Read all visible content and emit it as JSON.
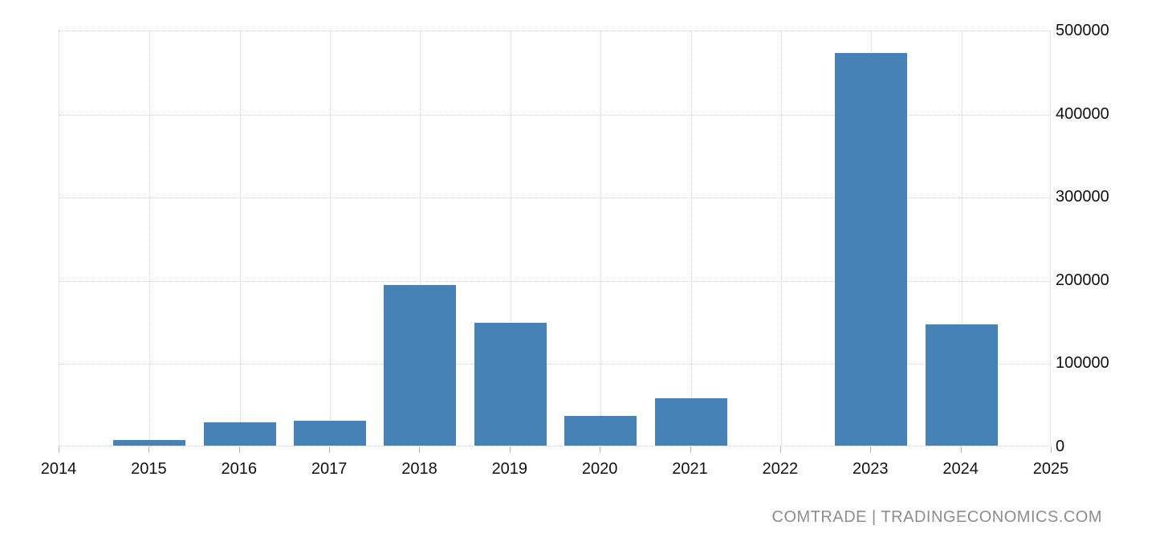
{
  "watermark": {
    "text": "COMTRADE | TRADINGECONOMICS.COM"
  },
  "chart_data": {
    "type": "bar",
    "title": "",
    "xlabel": "",
    "ylabel": "",
    "categories": [
      2015,
      2016,
      2017,
      2018,
      2019,
      2020,
      2021,
      2022,
      2023,
      2024
    ],
    "values": [
      7000,
      28000,
      30000,
      193000,
      148000,
      36000,
      57000,
      0,
      472000,
      146000
    ],
    "x_ticks": [
      2014,
      2015,
      2016,
      2017,
      2018,
      2019,
      2020,
      2021,
      2022,
      2023,
      2024,
      2025
    ],
    "y_ticks": [
      0,
      100000,
      200000,
      300000,
      400000,
      500000
    ],
    "xlim": [
      2014,
      2025
    ],
    "ylim": [
      0,
      500000
    ],
    "grid": true,
    "legend": "none",
    "y_axis_side": "right",
    "bar_color": "#4782b7",
    "grid_color": "#d0d0d0",
    "tick_color": "#b9b9b9",
    "label_color": "#111111",
    "watermark_color": "#8d8d8d"
  }
}
